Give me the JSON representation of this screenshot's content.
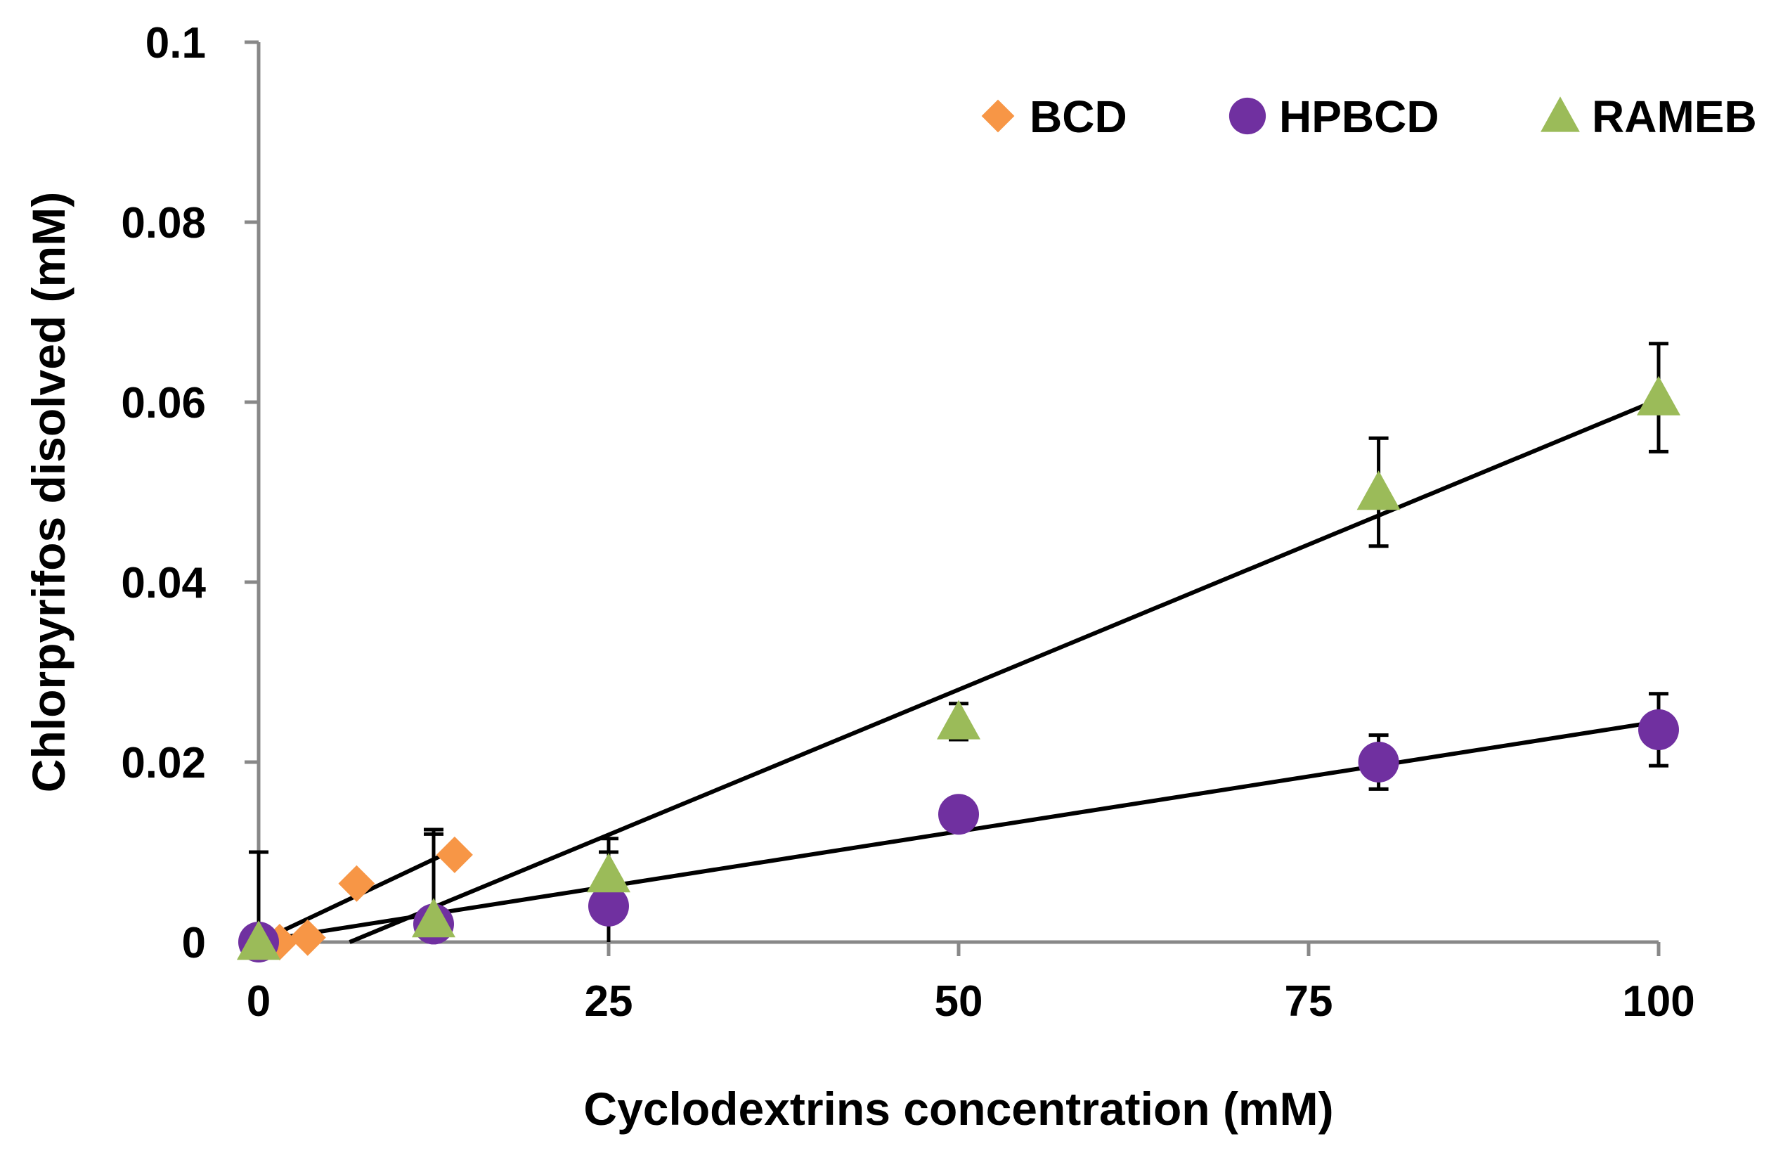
{
  "chart_data": {
    "type": "scatter",
    "title": "",
    "xlabel": "Cyclodextrins concentration (mM)",
    "ylabel": "Chlorpyrifos disolved (mM)",
    "xlim": [
      0,
      100
    ],
    "ylim": [
      0,
      0.1
    ],
    "xticks": [
      "0",
      "25",
      "50",
      "75",
      "100"
    ],
    "xtick_values": [
      0,
      25,
      50,
      75,
      100
    ],
    "yticks": [
      "0",
      "0.02",
      "0.04",
      "0.06",
      "0.08",
      "0.1"
    ],
    "ytick_values": [
      0,
      0.02,
      0.04,
      0.06,
      0.08,
      0.1
    ],
    "grid": false,
    "legend_position": "top-right",
    "series": [
      {
        "name": "BCD",
        "marker": "diamond",
        "color": "#F79646",
        "x": [
          0,
          1.5,
          3.5,
          7,
          14
        ],
        "y": [
          0,
          0,
          0.0005,
          0.0065,
          0.0097
        ],
        "trendline": {
          "x": [
            0,
            14
          ],
          "y": [
            0,
            0.0103
          ]
        }
      },
      {
        "name": "HPBCD",
        "marker": "circle",
        "color": "#7030A0",
        "x": [
          0,
          12.5,
          25,
          50,
          80,
          100
        ],
        "y": [
          0,
          0.002,
          0.004,
          0.0142,
          0.02,
          0.0236
        ],
        "error": [
          0.01,
          0.01,
          0.006,
          0.0018,
          0.003,
          0.004
        ],
        "trendline": {
          "x": [
            0,
            100
          ],
          "y": [
            0.0001,
            0.0245
          ]
        }
      },
      {
        "name": "RAMEB",
        "marker": "triangle",
        "color": "#9BBB59",
        "x": [
          0,
          12.5,
          25,
          50,
          80,
          100
        ],
        "y": [
          0,
          0.0025,
          0.0075,
          0.0245,
          0.05,
          0.0605
        ],
        "error": [
          0,
          0.01,
          0.004,
          0.002,
          0.006,
          0.006
        ],
        "trendline": {
          "x": [
            6.5,
            100
          ],
          "y": [
            0,
            0.0603
          ]
        }
      }
    ]
  }
}
